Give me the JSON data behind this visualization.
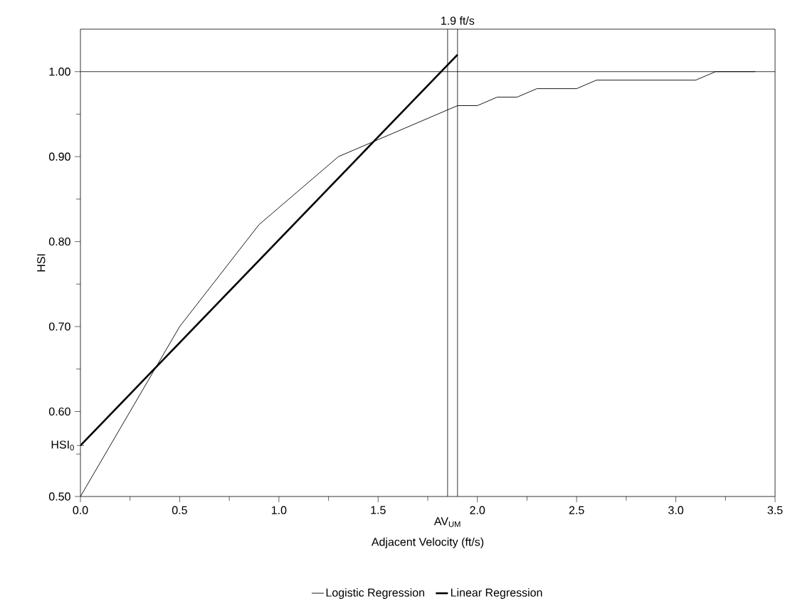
{
  "chart_data": {
    "type": "line",
    "xlabel": "Adjacent Velocity (ft/s)",
    "ylabel": "HSI",
    "series": [
      {
        "name": "Logistic Regression",
        "color": "#000000",
        "x": [
          0,
          0.5,
          0.9,
          1.0,
          1.3,
          1.5,
          1.7,
          1.9,
          2.0,
          2.1,
          2.2,
          2.3,
          2.5,
          2.6,
          3.1,
          3.2,
          3.4
        ],
        "values": [
          0.5,
          0.7,
          0.82,
          0.84,
          0.9,
          0.92,
          0.94,
          0.96,
          0.96,
          0.97,
          0.97,
          0.98,
          0.98,
          0.99,
          0.99,
          1.0,
          1.0
        ]
      },
      {
        "name": "Linear Regression",
        "color": "#000000",
        "x": [
          0,
          1.9
        ],
        "values": [
          0.56,
          1.02
        ]
      }
    ],
    "xlim": [
      0,
      3.5
    ],
    "ylim": [
      0.5,
      1.05
    ],
    "xticks": [
      {
        "value": 0,
        "label": "0.0"
      },
      {
        "value": 0.25,
        "label": null
      },
      {
        "value": 0.5,
        "label": "0.5"
      },
      {
        "value": 0.75,
        "label": null
      },
      {
        "value": 1,
        "label": "1.0"
      },
      {
        "value": 1.25,
        "label": null
      },
      {
        "value": 1.5,
        "label": "1.5"
      },
      {
        "value": 1.75,
        "label": null
      },
      {
        "value": 2,
        "label": "2.0"
      },
      {
        "value": 2.25,
        "label": null
      },
      {
        "value": 2.5,
        "label": "2.5"
      },
      {
        "value": 2.75,
        "label": null
      },
      {
        "value": 3,
        "label": "3.0"
      },
      {
        "value": 3.25,
        "label": null
      },
      {
        "value": 3.5,
        "label": "3.5"
      }
    ],
    "yticks": [
      {
        "value": 0.5,
        "label": "0.50"
      },
      {
        "value": 0.55,
        "label": null
      },
      {
        "value": 0.6,
        "label": "0.60"
      },
      {
        "value": 0.65,
        "label": null
      },
      {
        "value": 0.7,
        "label": "0.70"
      },
      {
        "value": 0.75,
        "label": null
      },
      {
        "value": 0.8,
        "label": "0.80"
      },
      {
        "value": 0.85,
        "label": null
      },
      {
        "value": 0.9,
        "label": "0.90"
      },
      {
        "value": 0.95,
        "label": null
      },
      {
        "value": 1.0,
        "label": "1.00"
      }
    ],
    "ref_lines": [
      {
        "axis": "x",
        "value": 1.9,
        "label": "1.9 ft/s"
      },
      {
        "axis": "x",
        "value": 1.85,
        "label": "AV$_{UM}$"
      },
      {
        "axis": "y",
        "value": 1.0,
        "label": null
      }
    ],
    "annotations": [
      {
        "text": "HSI$_{0}$",
        "x": 0,
        "y": 0.56
      }
    ],
    "grid": false,
    "legend": "bottom",
    "marker": "none",
    "line_style": "solid"
  }
}
